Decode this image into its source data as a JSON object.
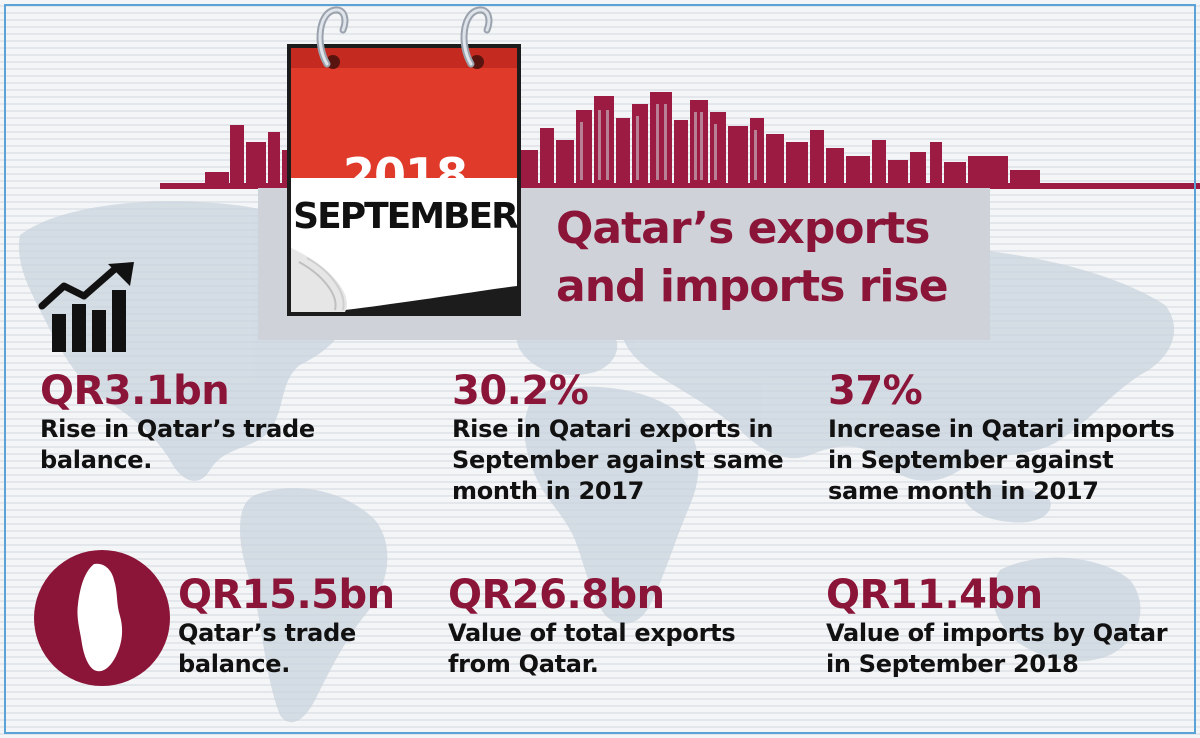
{
  "title": {
    "line1": "Qatar’s exports",
    "line2": "and imports rise"
  },
  "calendar": {
    "year": "2018",
    "month": "SEPTEMBER"
  },
  "icons": {
    "growth": "bar-chart-growth-arrow-icon",
    "qatar": "qatar-map-icon"
  },
  "colors": {
    "accent": "#8a1538",
    "calendar_red": "#e03a2b",
    "frame": "#5ba3d6"
  },
  "stats": [
    {
      "value": "QR3.1bn",
      "description": "Rise in Qatar’s trade balance."
    },
    {
      "value": "30.2%",
      "description": "Rise in Qatari exports in September against same month in 2017"
    },
    {
      "value": "37%",
      "description": "Increase in Qatari imports in September against same month in 2017"
    },
    {
      "value": "QR15.5bn",
      "description": "Qatar’s trade balance."
    },
    {
      "value": "QR26.8bn",
      "description": "Value of total exports from Qatar."
    },
    {
      "value": "QR11.4bn",
      "description": "Value of imports by Qatar in September 2018"
    }
  ]
}
